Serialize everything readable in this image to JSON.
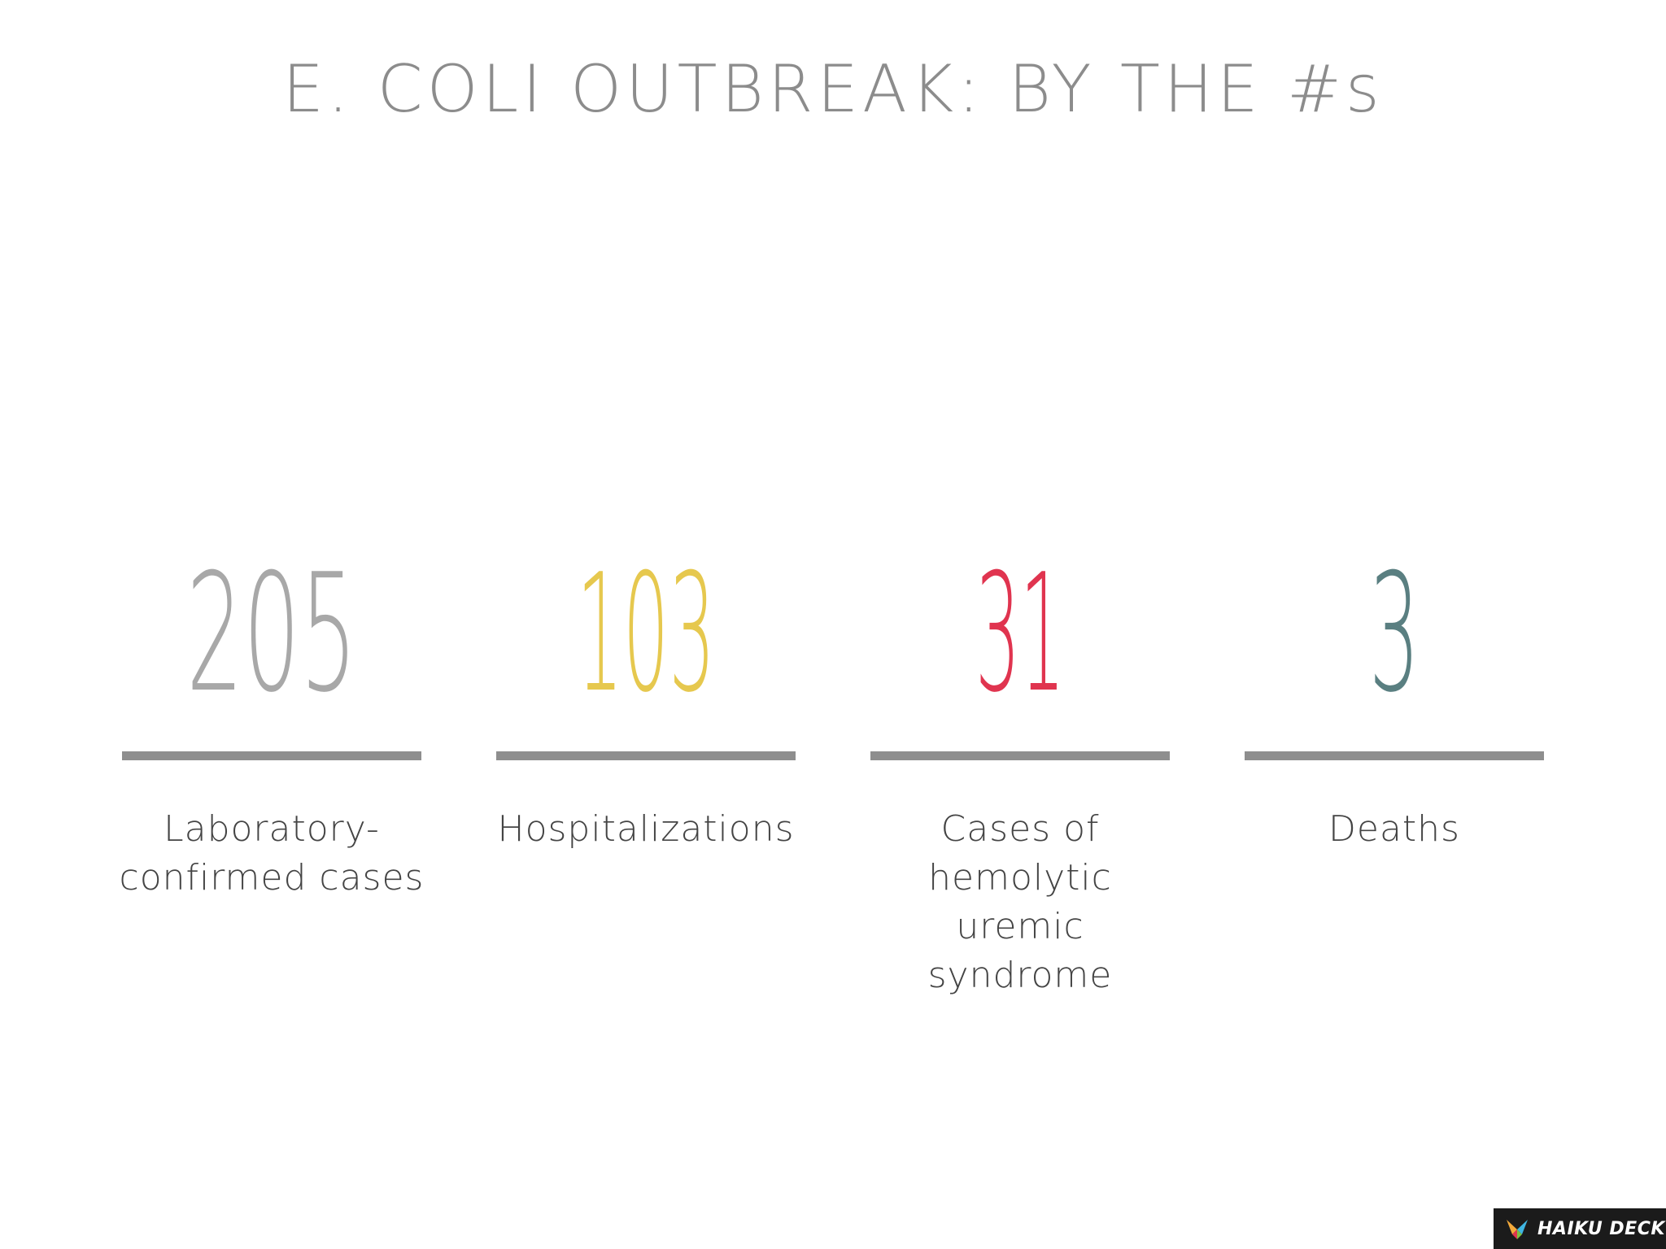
{
  "title": "E. COLI OUTBREAK: BY THE #s",
  "stats": [
    {
      "value": "205",
      "label": "Laboratory-confirmed cases",
      "color": "#a8a8a8"
    },
    {
      "value": "103",
      "label": "Hospitalizations",
      "color": "#e6c84e"
    },
    {
      "value": "31",
      "label": "Cases of hemolytic uremic syndrome",
      "color": "#e0344f"
    },
    {
      "value": "3",
      "label": "Deaths",
      "color": "#5a7f81"
    }
  ],
  "rule_color": "#8e8e8e",
  "brand": {
    "name": "HAIKU DECK",
    "icon": "haiku-deck-logo-icon"
  }
}
